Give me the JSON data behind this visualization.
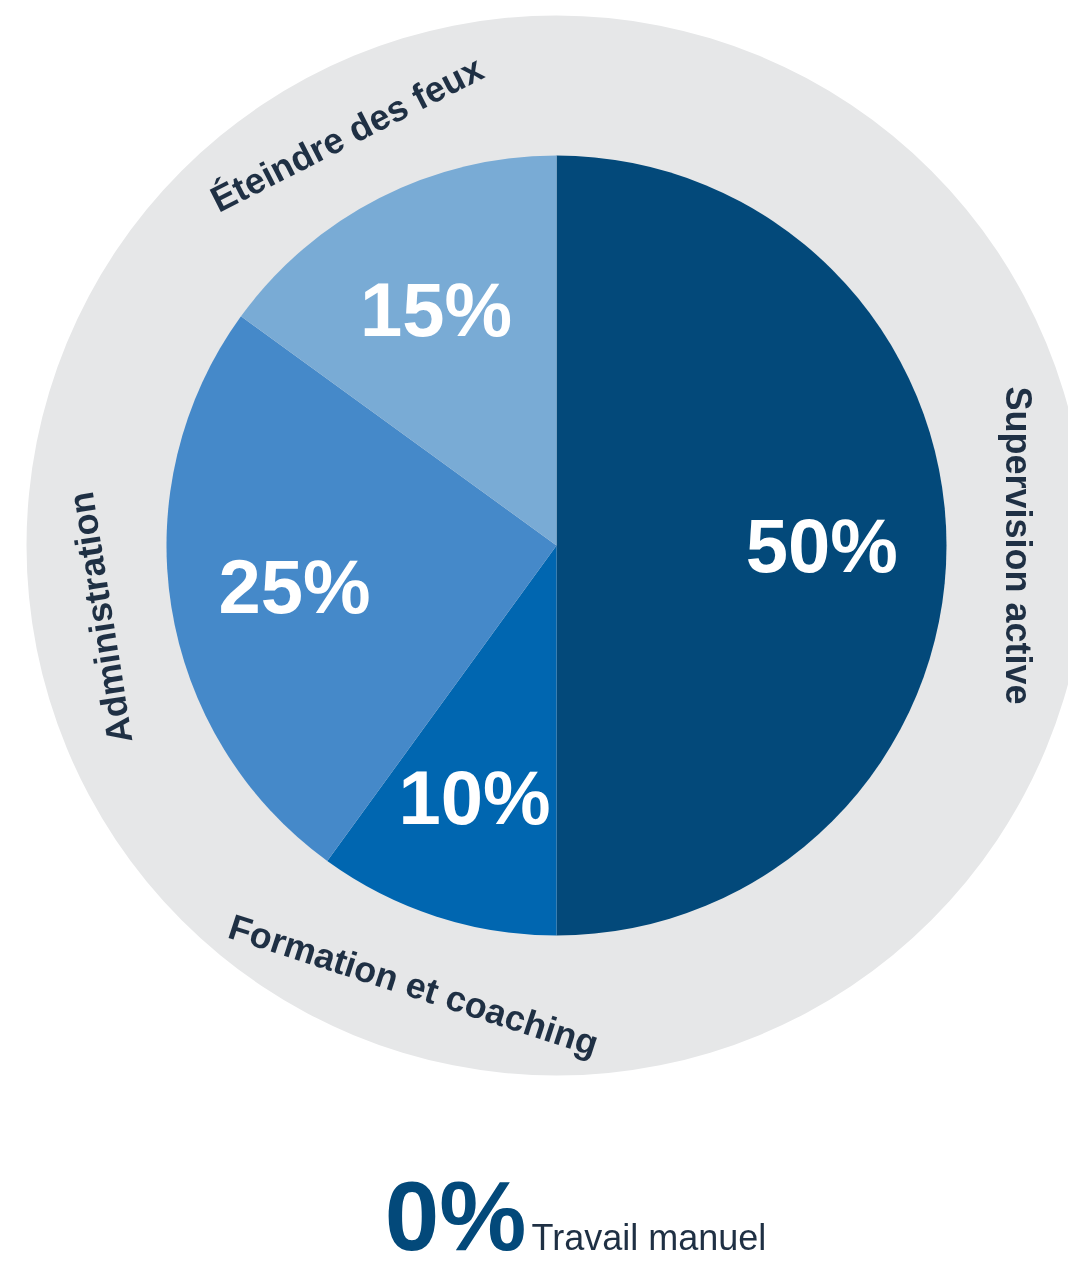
{
  "chart_data": {
    "type": "pie",
    "categories": [
      "Supervision active",
      "Formation et coaching",
      "Administration",
      "Éteindre des feux",
      "Travail manuel"
    ],
    "values": [
      50,
      10,
      25,
      15,
      0
    ],
    "colors": [
      "#03497a",
      "#0066b0",
      "#4589c9",
      "#79abd5",
      "#03497a"
    ],
    "value_labels": [
      "50%",
      "10%",
      "25%",
      "15%",
      "0%"
    ]
  }
}
